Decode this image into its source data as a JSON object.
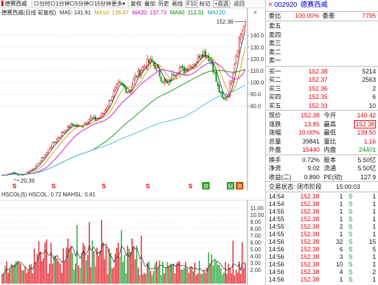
{
  "toolbar": {
    "stock_name": "德赛西威",
    "periods": [
      "分时",
      "1分钟",
      "5分钟",
      "15分钟",
      "更多"
    ],
    "tools": [
      "复权",
      "叠加",
      "历史",
      "画线",
      "F10",
      "标记",
      "+自选",
      "返回"
    ]
  },
  "legend": {
    "title": "德赛西威(日线 前复权)",
    "ma5": "MA5: 141.91",
    "ma10": "MA10: 138.67",
    "ma20": "MA20: 137.73",
    "ma60": "MA60: 113.31",
    "ma120": "MA120:"
  },
  "chart_annotations": {
    "high_label": "152.38",
    "low_label": "20.39",
    "price_ticks": [
      "140.0",
      "130.0",
      "120.0",
      "110.0",
      "100.0",
      "90.0",
      "80.0"
    ],
    "volume_ticks": [
      "11.00",
      "10.00",
      "9.00",
      "8.00",
      "7.00",
      "6.00",
      "5.00",
      "4.00",
      "3.00",
      "2.00"
    ],
    "event_markers": [
      "S",
      "S",
      "S",
      "S",
      "S",
      "S"
    ],
    "tag_badges": [
      "资",
      "财",
      "资"
    ]
  },
  "indicator_header": "HSCOL(5) HSCOL: 0.72 MAHSL: 0.61",
  "chart_data": {
    "type": "candlestick",
    "price_low_point": 20.39,
    "price_high_point": 152.38,
    "ylim": [
      10,
      155
    ],
    "note_price_path": [
      21,
      22,
      23,
      21,
      22,
      25,
      28,
      34,
      40,
      47,
      52,
      58,
      62,
      64,
      62,
      66,
      70,
      68,
      72,
      80,
      90,
      98,
      96,
      92,
      104,
      110,
      116,
      118,
      112,
      102,
      98,
      108,
      112,
      110,
      114,
      118,
      126,
      124,
      116,
      96,
      84,
      92,
      116,
      140,
      150
    ],
    "volume_ylim": [
      0,
      12
    ]
  },
  "quote": {
    "code": "002920",
    "name": "德赛西威",
    "weibi_label": "委比",
    "weibi_value": "100.00%",
    "weicha_label": "委差",
    "weicha_value": "7795",
    "sell": [
      {
        "label": "卖五",
        "price": "",
        "vol": ""
      },
      {
        "label": "卖四",
        "price": "",
        "vol": ""
      },
      {
        "label": "卖三",
        "price": "",
        "vol": ""
      },
      {
        "label": "卖二",
        "price": "",
        "vol": ""
      },
      {
        "label": "卖一",
        "price": "",
        "vol": ""
      }
    ],
    "buy": [
      {
        "label": "买一",
        "price": "152.38",
        "vol": "5214"
      },
      {
        "label": "买二",
        "price": "152.37",
        "vol": "2563"
      },
      {
        "label": "买三",
        "price": "152.36",
        "vol": "2"
      },
      {
        "label": "买四",
        "price": "152.35",
        "vol": "6"
      },
      {
        "label": "买五",
        "price": "152.33",
        "vol": "10"
      }
    ],
    "stats": [
      {
        "l1": "现价",
        "v1": "152.38",
        "l2": "今开",
        "v2": "140.42"
      },
      {
        "l1": "涨跌",
        "v1": "13.85",
        "l2": "最高",
        "v2": "152.38"
      },
      {
        "l1": "涨幅",
        "v1": "10.00%",
        "l2": "最低",
        "v2": "139.50"
      },
      {
        "l1": "总量",
        "v1": "39841",
        "l2": "量比",
        "v2": "1.16"
      },
      {
        "l1": "外盘",
        "v1": "15440",
        "l2": "内盘",
        "v2": "24401"
      }
    ],
    "stats2": [
      {
        "l1": "换手",
        "v1": "0.72%",
        "l2": "股本",
        "v2": "5.50亿"
      },
      {
        "l1": "净资",
        "v1": "9.02",
        "l2": "流通",
        "v2": "5.50亿"
      },
      {
        "l1": "收益(二)",
        "v1": "0.890",
        "l2": "PE(动)",
        "v2": "127.9"
      }
    ],
    "status_label": "交易状态: 闭市阶段",
    "status_time": "15:00:03",
    "ticks": [
      {
        "time": "14:54",
        "price": "152.38",
        "vol": "1",
        "dir": "S",
        "n": "1"
      },
      {
        "time": "14:54",
        "price": "152.38",
        "vol": "1",
        "dir": "S",
        "n": "1"
      },
      {
        "time": "14:55",
        "price": "152.38",
        "vol": "1",
        "dir": "S",
        "n": "1"
      },
      {
        "time": "14:55",
        "price": "152.38",
        "vol": "1",
        "dir": "S",
        "n": "1"
      },
      {
        "time": "14:55",
        "price": "152.38",
        "vol": "2",
        "dir": "S",
        "n": "1"
      },
      {
        "time": "14:55",
        "price": "152.38",
        "vol": "1",
        "dir": "S",
        "n": "1"
      },
      {
        "time": "14:56",
        "price": "152.38",
        "vol": "32",
        "dir": "S",
        "n": "15"
      },
      {
        "time": "14:56",
        "price": "152.38",
        "vol": "6",
        "dir": "S",
        "n": "5"
      },
      {
        "time": "14:56",
        "price": "152.38",
        "vol": "3",
        "dir": "S",
        "n": "1"
      },
      {
        "time": "14:56",
        "price": "152.38",
        "vol": "10",
        "dir": "S",
        "n": "1"
      },
      {
        "time": "14:56",
        "price": "152.38",
        "vol": "4",
        "dir": "S",
        "n": "2"
      },
      {
        "time": "14:56",
        "price": "152.38",
        "vol": "1",
        "dir": "S",
        "n": "1"
      }
    ]
  }
}
